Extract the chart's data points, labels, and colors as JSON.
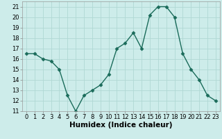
{
  "x": [
    0,
    1,
    2,
    3,
    4,
    5,
    6,
    7,
    8,
    9,
    10,
    11,
    12,
    13,
    14,
    15,
    16,
    17,
    18,
    19,
    20,
    21,
    22,
    23
  ],
  "y": [
    16.5,
    16.5,
    16.0,
    15.8,
    15.0,
    12.5,
    11.0,
    12.5,
    13.0,
    13.5,
    14.5,
    17.0,
    17.5,
    18.5,
    17.0,
    20.2,
    21.0,
    21.0,
    20.0,
    16.5,
    15.0,
    14.0,
    12.5,
    12.0
  ],
  "line_color": "#1a6b5a",
  "marker": "D",
  "marker_size": 2.5,
  "bg_color": "#cdecea",
  "grid_color": "#b0d8d4",
  "xlabel": "Humidex (Indice chaleur)",
  "xlim": [
    -0.5,
    23.5
  ],
  "ylim": [
    11,
    21.5
  ],
  "yticks": [
    11,
    12,
    13,
    14,
    15,
    16,
    17,
    18,
    19,
    20,
    21
  ],
  "xticks": [
    0,
    1,
    2,
    3,
    4,
    5,
    6,
    7,
    8,
    9,
    10,
    11,
    12,
    13,
    14,
    15,
    16,
    17,
    18,
    19,
    20,
    21,
    22,
    23
  ],
  "label_fontsize": 7.5,
  "tick_fontsize": 6.0
}
